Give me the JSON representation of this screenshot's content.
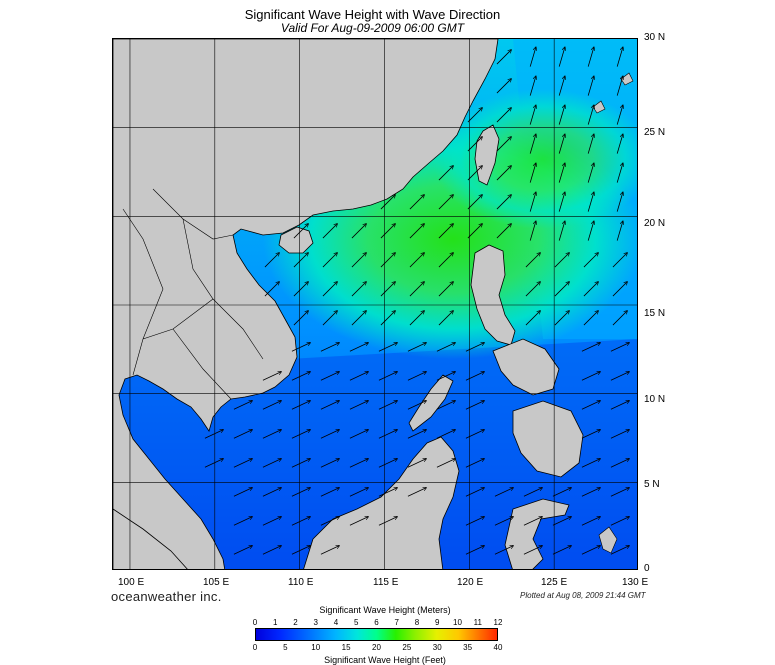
{
  "title": "Significant Wave Height with Wave Direction",
  "subtitle": "Valid For Aug-09-2009 06:00 GMT",
  "brand": "oceanweather inc.",
  "plotted_note": "Plotted at Aug 08, 2009 21:44 GMT",
  "map": {
    "lon_labels": [
      "100 E",
      "105 E",
      "110 E",
      "115 E",
      "120 E",
      "125 E",
      "130 E"
    ],
    "lat_labels": [
      "30 N",
      "25 N",
      "20 N",
      "15 N",
      "10 N",
      "5 N",
      "0"
    ],
    "lon_range": [
      99,
      130
    ],
    "lat_range": [
      0,
      30
    ],
    "land_color": "#c8c8c8",
    "arrow_direction": "toward north-east",
    "grid": true
  },
  "colorbar": {
    "meters_title": "Significant Wave Height (Meters)",
    "feet_title": "Significant Wave Height (Feet)",
    "meters_ticks": [
      "0",
      "1",
      "2",
      "3",
      "4",
      "5",
      "6",
      "7",
      "8",
      "9",
      "10",
      "11",
      "12"
    ],
    "feet_ticks": [
      "0",
      "5",
      "10",
      "15",
      "20",
      "25",
      "30",
      "35",
      "40"
    ],
    "colors": [
      "#0000dc",
      "#0028ff",
      "#0070ff",
      "#00b4ff",
      "#00e6dc",
      "#00ff8c",
      "#28f000",
      "#8cf000",
      "#e6f000",
      "#ffc800",
      "#ff7800",
      "#ff2800"
    ]
  }
}
